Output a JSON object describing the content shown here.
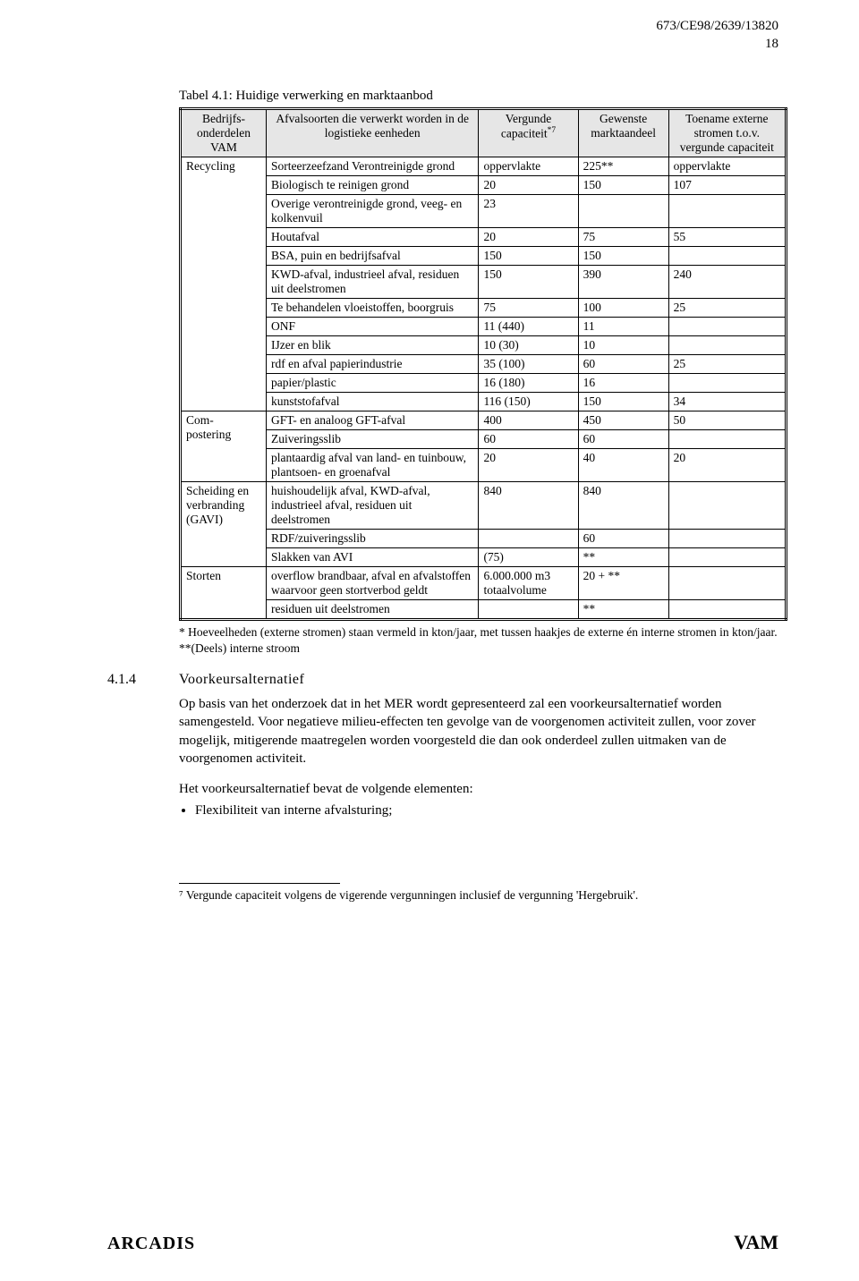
{
  "header": {
    "docref": "673/CE98/2639/13820",
    "pagenum": "18"
  },
  "table": {
    "caption": "Tabel 4.1: Huidige verwerking en marktaanbod",
    "head": {
      "c1": "Bedrijfs-\nonderdelen\nVAM",
      "c2": "Afvalsoorten die verwerkt\nworden in de logistieke\neenheden",
      "c3": "Vergunde capaciteit",
      "c3_sup": "*7",
      "c4": "Gewenste marktaandeel",
      "c5": "Toename externe stromen t.o.v. vergunde capaciteit"
    },
    "rows": [
      {
        "cat": "Recycling",
        "rowspan": 12,
        "item": "Sorteerzeefzand\nVerontreinigde grond",
        "c3": "oppervlakte",
        "c4": "225**",
        "c5": "oppervlakte"
      },
      {
        "item": "Biologisch te reinigen grond",
        "c3": "20",
        "c4": "150",
        "c5": "107"
      },
      {
        "item": "Overige verontreinigde grond, veeg- en kolkenvuil",
        "c3": "23",
        "c4": "",
        "c5": ""
      },
      {
        "item": "Houtafval",
        "c3": "20",
        "c4": "75",
        "c5": "55"
      },
      {
        "item": "BSA, puin en bedrijfsafval",
        "c3": "150",
        "c4": "150",
        "c5": ""
      },
      {
        "item": "KWD-afval, industrieel afval, residuen uit deelstromen",
        "c3": "150",
        "c4": "390",
        "c5": "240"
      },
      {
        "item": "Te behandelen vloeistoffen, boorgruis",
        "c3": "75",
        "c4": "100",
        "c5": "25"
      },
      {
        "item": "ONF",
        "c3": "11 (440)",
        "c4": "11",
        "c5": ""
      },
      {
        "item": "IJzer en blik",
        "c3": "10 (30)",
        "c4": "10",
        "c5": ""
      },
      {
        "item": "rdf en afval papierindustrie",
        "c3": "35 (100)",
        "c4": "60",
        "c5": "25"
      },
      {
        "item": "papier/plastic",
        "c3": "16 (180)",
        "c4": "16",
        "c5": ""
      },
      {
        "item": "kunststofafval",
        "c3": "116 (150)",
        "c4": "150",
        "c5": "34"
      },
      {
        "cat": "Com-\npostering",
        "rowspan": 3,
        "item": "GFT- en analoog GFT-afval",
        "c3": "400",
        "c4": "450",
        "c5": "50"
      },
      {
        "item": "Zuiveringsslib",
        "c3": "60",
        "c4": "60",
        "c5": ""
      },
      {
        "item": "plantaardig afval van land- en tuinbouw, plantsoen- en groenafval",
        "c3": "20",
        "c4": "40",
        "c5": "20"
      },
      {
        "cat": "Scheiding en verbranding (GAVI)",
        "rowspan": 3,
        "item": "huishoudelijk afval, KWD-afval, industrieel afval, residuen uit deelstromen",
        "c3": "840",
        "c4": "840",
        "c5": ""
      },
      {
        "item": "RDF/zuiveringsslib",
        "c3": "",
        "c4": "60",
        "c5": ""
      },
      {
        "item": "Slakken van AVI",
        "c3": "(75)",
        "c4": "**",
        "c5": ""
      },
      {
        "cat": "Storten",
        "rowspan": 2,
        "item": "overflow brandbaar, afval en afvalstoffen waarvoor geen stortverbod geldt",
        "c3": "6.000.000 m3 totaalvolume",
        "c4": "20 + **",
        "c5": ""
      },
      {
        "item": "residuen uit deelstromen",
        "c3": "",
        "c4": "**",
        "c5": ""
      }
    ]
  },
  "footnotes_table": {
    "f1": "* Hoeveelheden (externe stromen) staan vermeld in kton/jaar, met tussen haakjes de externe én interne stromen in kton/jaar.",
    "f2": "**(Deels) interne stroom"
  },
  "section": {
    "num": "4.1.4",
    "title": "Voorkeursalternatief",
    "p1": "Op basis van het onderzoek dat in het MER wordt gepresenteerd zal een voorkeursalternatief worden samengesteld. Voor negatieve milieu-effecten ten gevolge van de voorgenomen activiteit zullen, voor zover mogelijk, mitigerende maatregelen worden voorgesteld die dan ook onderdeel zullen uitmaken van de voorgenomen activiteit.",
    "p2": "Het voorkeursalternatief bevat de volgende elementen:",
    "bullet1": "Flexibiliteit van interne afvalsturing;"
  },
  "footnote7": "⁷ Vergunde capaciteit volgens de vigerende vergunningen inclusief de vergunning 'Hergebruik'.",
  "footer": {
    "left": "ARCADIS",
    "right": "VAM"
  }
}
